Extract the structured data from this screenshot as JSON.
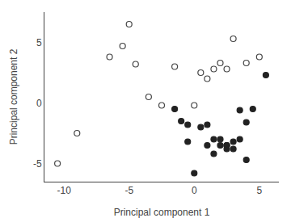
{
  "chart_data": {
    "type": "scatter",
    "xlabel": "Principal component 1",
    "ylabel": "Principal component 2",
    "series": [
      {
        "x": [
          -10.5,
          -9.0,
          -6.5,
          -5.5,
          -5.0,
          -4.5,
          -3.5,
          -2.5,
          -1.5,
          0.0,
          0.5,
          1.0,
          1.5,
          2.0,
          2.5,
          3.0,
          4.0,
          5.0
        ],
        "values": [
          -5.0,
          -2.5,
          3.8,
          4.7,
          6.5,
          3.2,
          0.5,
          -0.2,
          3.0,
          -0.2,
          2.5,
          2.0,
          2.8,
          3.3,
          2.8,
          5.3,
          3.3,
          3.8
        ],
        "color": "#444444",
        "marker": "circle-open"
      },
      {
        "x": [
          -1.5,
          -1.0,
          -0.5,
          -0.5,
          0.0,
          0.5,
          1.0,
          1.0,
          1.5,
          1.5,
          2.0,
          2.0,
          2.5,
          2.5,
          2.5,
          3.0,
          3.0,
          3.5,
          3.5,
          4.0,
          4.0,
          4.5,
          5.5
        ],
        "values": [
          -0.5,
          -1.5,
          -1.8,
          -3.2,
          -5.8,
          -2.0,
          -1.8,
          -3.5,
          -3.0,
          -4.2,
          -3.0,
          -3.5,
          -3.5,
          -3.8,
          -3.5,
          -3.2,
          -3.8,
          -0.6,
          -3.0,
          -1.6,
          -4.7,
          -0.5,
          2.3
        ],
        "color": "#222222",
        "marker": "circle"
      }
    ],
    "xlim": [
      -11.5,
      6.5
    ],
    "ylim": [
      -6.5,
      7.5
    ],
    "xticks": [
      -10,
      -5,
      0,
      5
    ],
    "yticks": [
      -5,
      0,
      5
    ],
    "grid": false
  }
}
